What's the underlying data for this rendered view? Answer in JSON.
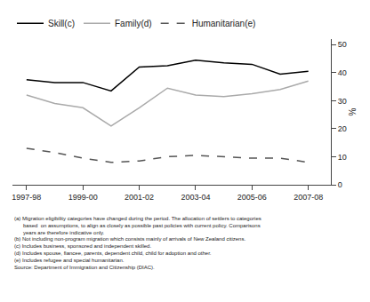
{
  "chart_data": {
    "type": "line",
    "x": [
      1997.5,
      1998.5,
      1999.5,
      2000.5,
      2001.5,
      2002.5,
      2003.5,
      2004.5,
      2005.5,
      2006.5,
      2007.5
    ],
    "series": [
      {
        "name": "Skill(c)",
        "color": "#000000",
        "line_style": "solid",
        "values": [
          37.5,
          36.5,
          36.5,
          33.5,
          42.0,
          42.5,
          44.5,
          43.5,
          43.0,
          39.5,
          40.5
        ]
      },
      {
        "name": "Family(d)",
        "color": "#aaaaaa",
        "line_style": "solid",
        "values": [
          32.0,
          29.0,
          27.5,
          21.0,
          27.5,
          34.5,
          32.0,
          31.5,
          32.5,
          34.0,
          37.0
        ]
      },
      {
        "name": "Humanitarian(e)",
        "color": "#555555",
        "line_style": "dashed",
        "values": [
          13.0,
          11.5,
          9.5,
          8.0,
          8.5,
          10.0,
          10.5,
          10.0,
          9.5,
          9.5,
          8.0
        ]
      }
    ],
    "xlim": [
      1997.0,
      2008.3
    ],
    "xticks": [
      {
        "value": 1997.5,
        "label": "1997-98"
      },
      {
        "value": 1999.5,
        "label": "1999-00"
      },
      {
        "value": 2001.5,
        "label": "2001-02"
      },
      {
        "value": 2003.5,
        "label": "2003-04"
      },
      {
        "value": 2005.5,
        "label": "2005-06"
      },
      {
        "value": 2007.5,
        "label": "2007-08"
      }
    ],
    "ylim": [
      0,
      52
    ],
    "yticks": [
      0,
      10,
      20,
      30,
      40,
      50
    ],
    "y_label": "%",
    "grid": false,
    "legend": "top left",
    "annotations": [
      "(a) Migration eligibility categories have changed during the period. The allocation of settlers to categories",
      "      based  on assumptions, to align as closely as possible past policies with current policy. Comparisons",
      "      years are therefore indicative only.",
      "(b) Not including non-program migration which consists mainly of arrivals of New Zealand citizens.",
      "(c) Includes business, sponsored and independent skilled.",
      "(d) Includes spouse, fiancee, parents, dependent child, child for adoption and other.",
      "(e) Includes refugee and special humanitarian.",
      "Source: Department of Immigration and Citizenship (DIAC)."
    ]
  }
}
